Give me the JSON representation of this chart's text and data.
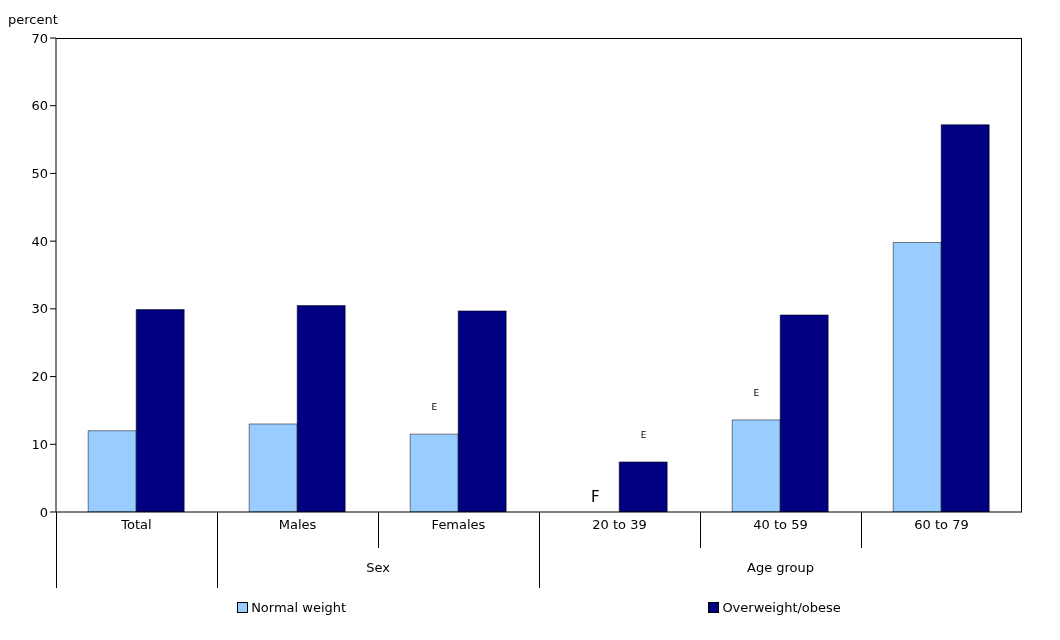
{
  "chart_data": {
    "type": "bar",
    "ylabel": "percent",
    "categories": [
      "Total",
      "Males",
      "Females",
      "20 to 39",
      "40 to 59",
      "60 to 79"
    ],
    "series": [
      {
        "name": "Normal weight",
        "color": "#99ccff",
        "values": [
          12.0,
          13.0,
          11.5,
          null,
          13.6,
          39.8
        ],
        "value_labels": [
          null,
          null,
          "E",
          "F",
          "E",
          null
        ]
      },
      {
        "name": "Overweight/obese",
        "color": "#000080",
        "values": [
          29.9,
          30.5,
          29.7,
          7.4,
          29.1,
          57.2
        ],
        "value_labels": [
          null,
          null,
          null,
          "E",
          null,
          null
        ]
      }
    ],
    "ylim": [
      0,
      70
    ],
    "yticks": [
      0,
      10,
      20,
      30,
      40,
      50,
      60,
      70
    ],
    "grid": false,
    "legend": "bottom",
    "annotations": [
      "Sex",
      "Age group"
    ]
  }
}
